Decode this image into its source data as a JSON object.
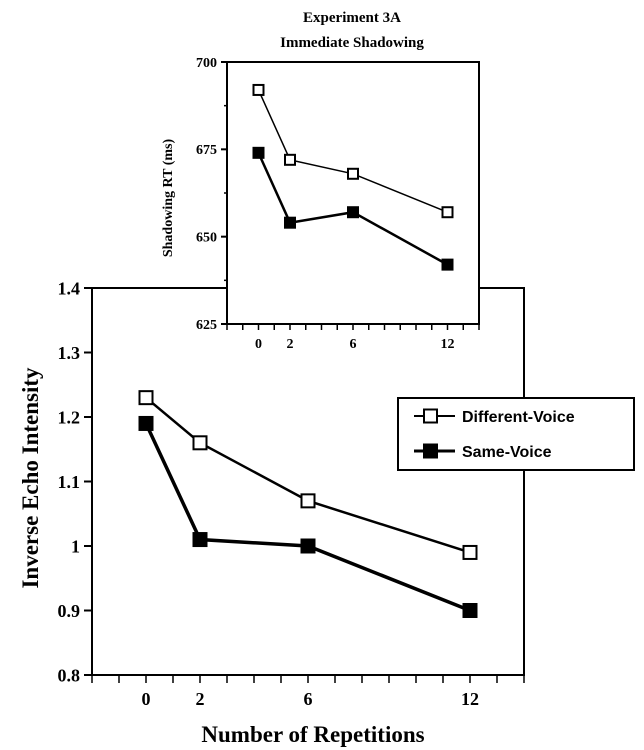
{
  "chart_data": [
    {
      "type": "line",
      "xlabel": "Number of Repetitions",
      "ylabel": "Inverse Echo Intensity",
      "x": [
        0,
        2,
        6,
        12
      ],
      "x_ticks": [
        "0",
        "2",
        "6",
        "12"
      ],
      "xlim": [
        -2,
        14
      ],
      "ylim": [
        0.8,
        1.4
      ],
      "y_ticks": [
        "0.8",
        "0.9",
        "1",
        "1.1",
        "1.2",
        "1.3",
        "1.4"
      ],
      "y_tick_values": [
        0.8,
        0.9,
        1.0,
        1.1,
        1.2,
        1.3,
        1.4
      ],
      "series": [
        {
          "name": "Different-Voice",
          "marker": "open-square",
          "values": [
            1.23,
            1.16,
            1.07,
            0.99
          ]
        },
        {
          "name": "Same-Voice",
          "marker": "filled-square",
          "values": [
            1.19,
            1.01,
            1.0,
            0.9
          ]
        }
      ],
      "legend": {
        "placement": "right"
      },
      "grid": false
    },
    {
      "type": "line",
      "title": "Experiment 3A",
      "subtitle": "Immediate Shadowing",
      "xlabel": "",
      "ylabel": "Shadowing RT (ms)",
      "x": [
        0,
        2,
        6,
        12
      ],
      "x_ticks": [
        "0",
        "2",
        "6",
        "12"
      ],
      "xlim": [
        -2,
        14
      ],
      "ylim": [
        625,
        700
      ],
      "y_ticks": [
        "625",
        "650",
        "675",
        "700"
      ],
      "y_tick_values": [
        625,
        650,
        675,
        700
      ],
      "series": [
        {
          "name": "Different-Voice",
          "marker": "open-square",
          "values": [
            692,
            672,
            668,
            657
          ]
        },
        {
          "name": "Same-Voice",
          "marker": "filled-square",
          "values": [
            674,
            654,
            657,
            642
          ]
        }
      ],
      "grid": false
    }
  ]
}
